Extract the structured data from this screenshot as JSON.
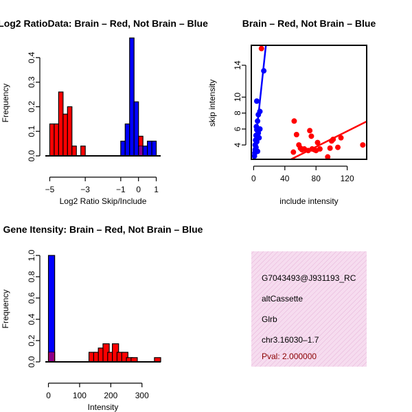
{
  "chart_data": [
    {
      "type": "bar",
      "title": "Log2 RatioData: Brain – Red, Not Brain – Blue",
      "xlabel": "Log2 Ratio Skip/Include",
      "ylabel": "Frequency",
      "xlim": [
        -5.25,
        1.25
      ],
      "ylim": [
        0,
        0.45
      ],
      "xticks": [
        -5,
        -3,
        -1,
        0,
        1
      ],
      "xtick_labels": [
        "−5",
        "−3",
        "−1",
        "0",
        "1"
      ],
      "yticks": [
        0,
        0.1,
        0.2,
        0.3,
        0.4
      ],
      "ytick_labels": [
        "0.0",
        "0.1",
        "0.2",
        "0.3",
        "0.4"
      ],
      "bin_width": 0.25,
      "series": [
        {
          "name": "Brain",
          "color": "#ff0000",
          "bin_starts": [
            -5.0,
            -4.75,
            -4.5,
            -4.25,
            -4.0,
            -3.75,
            -3.25,
            0.0
          ],
          "values": [
            0.13,
            0.13,
            0.26,
            0.17,
            0.2,
            0.04,
            0.04,
            0.08
          ]
        },
        {
          "name": "Not Brain",
          "color": "#0000ff",
          "bin_starts": [
            -1.0,
            -0.75,
            -0.5,
            -0.25,
            0.0,
            0.25,
            0.5,
            0.75
          ],
          "values": [
            0.06,
            0.13,
            0.48,
            0.22,
            0.04,
            0.04,
            0.06,
            0.06
          ]
        }
      ],
      "overlap_color": "#8b008b"
    },
    {
      "type": "scatter",
      "title": "Brain – Red, Not Brain – Blue",
      "xlabel": "include intensity",
      "ylabel": "skip intensity",
      "xlim": [
        -3,
        145
      ],
      "ylim": [
        2.2,
        16.5
      ],
      "xticks": [
        0,
        40,
        80,
        120
      ],
      "xtick_labels": [
        "0",
        "40",
        "80",
        "120"
      ],
      "yticks": [
        4,
        6,
        8,
        10,
        14
      ],
      "ytick_labels": [
        "4",
        "6",
        "8",
        "10",
        "14"
      ],
      "series": [
        {
          "name": "Brain",
          "color": "#ff0000",
          "points": [
            [
              51,
              3.1
            ],
            [
              52,
              7.0
            ],
            [
              55,
              5.3
            ],
            [
              58,
              4.0
            ],
            [
              60,
              3.6
            ],
            [
              62,
              3.4
            ],
            [
              65,
              3.5
            ],
            [
              70,
              3.3
            ],
            [
              72,
              5.8
            ],
            [
              74,
              5.1
            ],
            [
              75,
              3.5
            ],
            [
              78,
              3.4
            ],
            [
              80,
              3.3
            ],
            [
              82,
              4.3
            ],
            [
              85,
              3.5
            ],
            [
              95,
              2.5
            ],
            [
              98,
              3.6
            ],
            [
              100,
              4.5
            ],
            [
              102,
              4.7
            ],
            [
              108,
              3.7
            ],
            [
              112,
              4.9
            ],
            [
              140,
              4.0
            ],
            [
              10,
              16.1
            ]
          ],
          "fit": {
            "x": [
              48,
              145
            ],
            "y": [
              2.2,
              6.95
            ]
          }
        },
        {
          "name": "Not Brain",
          "color": "#0000ff",
          "points": [
            [
              1,
              2.6
            ],
            [
              1.5,
              3.0
            ],
            [
              2,
              3.4
            ],
            [
              2,
              4.0
            ],
            [
              2.5,
              4.6
            ],
            [
              3,
              5.2
            ],
            [
              3,
              3.7
            ],
            [
              3.5,
              6.3
            ],
            [
              4,
              5.9
            ],
            [
              4,
              4.4
            ],
            [
              5,
              7.0
            ],
            [
              5,
              3.2
            ],
            [
              6,
              5.5
            ],
            [
              6,
              7.8
            ],
            [
              7,
              4.9
            ],
            [
              8,
              6.0
            ],
            [
              8,
              8.2
            ],
            [
              4,
              9.5
            ],
            [
              13,
              13.3
            ]
          ],
          "fit": {
            "x": [
              0,
              15.7
            ],
            "y": [
              2.2,
              16.5
            ]
          }
        }
      ]
    },
    {
      "type": "bar",
      "title": "Gene Itensity: Brain – Red, Not Brain – Blue",
      "xlabel": "Intensity",
      "ylabel": "Frequency",
      "xlim": [
        -10,
        360
      ],
      "ylim": [
        0,
        1.0
      ],
      "xticks": [
        0,
        100,
        200,
        300
      ],
      "xtick_labels": [
        "0",
        "100",
        "200",
        "300"
      ],
      "yticks": [
        0,
        0.2,
        0.4,
        0.6,
        0.8,
        1.0
      ],
      "ytick_labels": [
        "0.0",
        "0.2",
        "0.4",
        "0.6",
        "0.8",
        "1.0"
      ],
      "bin_width": 20,
      "series": [
        {
          "name": "Not Brain",
          "color": "#0000ff",
          "bin_starts": [
            0
          ],
          "values": [
            1.0
          ]
        },
        {
          "name": "Brain",
          "color": "#ff0000",
          "bin_starts": [
            0,
            130,
            145,
            160,
            175,
            190,
            205,
            220,
            235,
            250,
            265,
            340
          ],
          "values": [
            0.09,
            0.09,
            0.09,
            0.13,
            0.17,
            0.09,
            0.17,
            0.09,
            0.09,
            0.04,
            0.04,
            0.04
          ]
        }
      ],
      "overlap_color": "#8b008b"
    }
  ],
  "info_panel": {
    "probe": "G7043493@J931193_RC",
    "event": "altCassette",
    "gene": "Glrb",
    "location": "chr3.16030–1.7",
    "pval": "Pval: 2.000000"
  }
}
